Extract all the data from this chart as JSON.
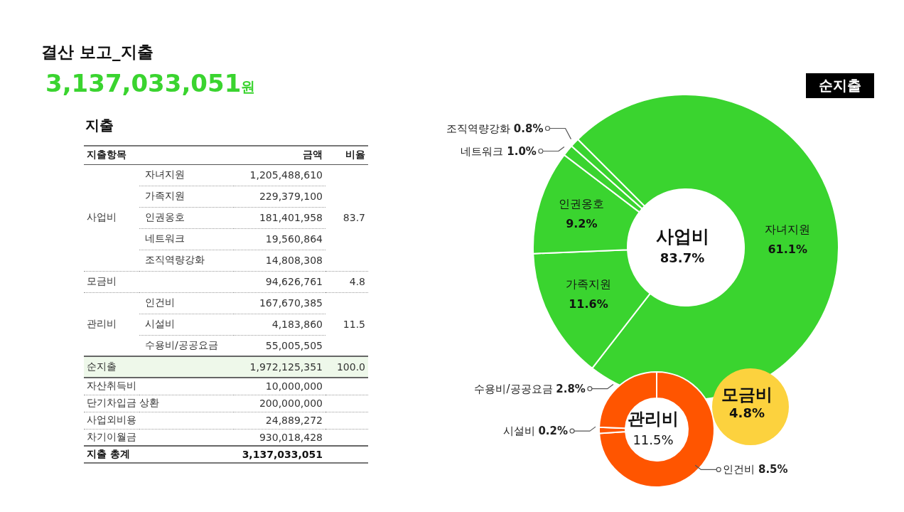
{
  "chart_data": [
    {
      "type": "other",
      "title": "결산 보고_지출",
      "subtitle": "3,137,033,051원",
      "annotations": [
        "지출"
      ],
      "categories": [
        "지출항목",
        null,
        "금액",
        "비율"
      ],
      "cell_labels": [
        [
          null,
          "자녀지원",
          "1,205,488,610",
          null
        ],
        [
          null,
          "가족지원",
          "229,379,100",
          null
        ],
        [
          "사업비",
          "인권옹호",
          "181,401,958",
          "83.7"
        ],
        [
          null,
          "네트워크",
          "19,560,864",
          null
        ],
        [
          null,
          "조직역량강화",
          "14,808,308",
          null
        ],
        [
          "모금비",
          null,
          "94,626,761",
          "4.8"
        ],
        [
          null,
          "인건비",
          "167,670,385",
          null
        ],
        [
          "관리비",
          "시설비",
          "4,183,860",
          "11.5"
        ],
        [
          null,
          "수용비/공공요금",
          "55,005,505",
          null
        ],
        [
          "순지출",
          null,
          "1,972,125,351",
          "100.0"
        ],
        [
          "자산취득비",
          null,
          "10,000,000",
          null
        ],
        [
          "단기차입금 상환",
          null,
          "200,000,000",
          null
        ],
        [
          "사업외비용",
          null,
          "24,889,272",
          null
        ],
        [
          "차기이월금",
          null,
          "930,018,428",
          null
        ],
        [
          "지출 총계",
          null,
          "3,137,033,051",
          null
        ]
      ]
    },
    {
      "type": "donut",
      "title": "사업비",
      "subtitle": "83.7%",
      "annotations": [
        "순지출"
      ],
      "value_labels": [
        "61.1%",
        "11.6%",
        "9.2%",
        "1.0%",
        "0.8%"
      ],
      "categories": [
        "자녀지원",
        "가족지원",
        "인권옹호",
        "네트워크",
        "조직역량강화"
      ],
      "values": [
        61.1,
        11.6,
        9.2,
        1.0,
        0.8
      ],
      "colors": [
        "#3ad42f",
        "#3ad42f",
        "#3ad42f",
        "#3ad42f",
        "#3ad42f"
      ]
    },
    {
      "type": "donut",
      "title": "관리비",
      "subtitle": "11.5%",
      "value_labels": [
        "8.5%",
        "0.2%",
        "2.8%"
      ],
      "categories": [
        "인건비",
        "시설비",
        "수용비/공공요금"
      ],
      "values": [
        8.5,
        0.2,
        2.8
      ],
      "colors": [
        "#ff5500",
        "#ff5500",
        "#ff5500"
      ]
    },
    {
      "type": "pie",
      "value_labels": [
        "4.8%"
      ],
      "categories": [
        "모금비"
      ],
      "values": [
        4.8
      ],
      "colors": [
        "#fcd23e"
      ]
    }
  ]
}
